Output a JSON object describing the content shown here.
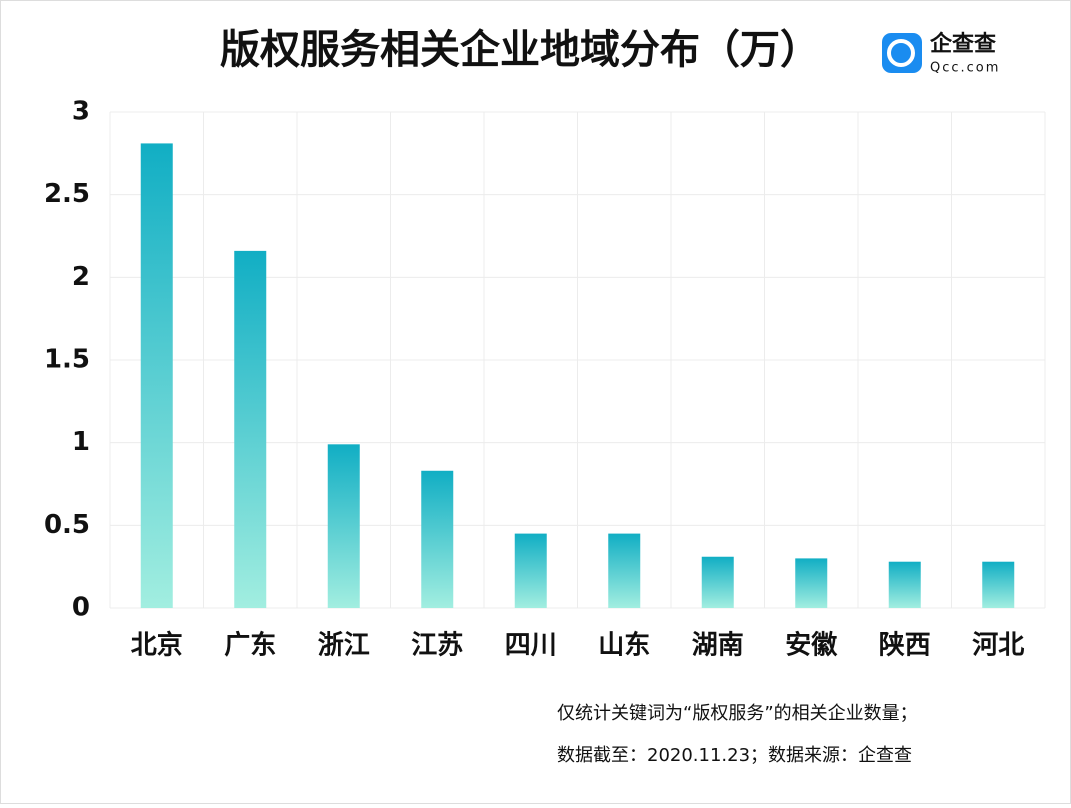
{
  "chart_data": {
    "type": "bar",
    "title": "版权服务相关企业地域分布（万）",
    "logo": {
      "name": "企查查",
      "site": "Qcc.com"
    },
    "categories": [
      "北京",
      "广东",
      "浙江",
      "江苏",
      "四川",
      "山东",
      "湖南",
      "安徽",
      "陕西",
      "河北"
    ],
    "values": [
      2.81,
      2.16,
      0.99,
      0.83,
      0.45,
      0.45,
      0.31,
      0.3,
      0.28,
      0.28
    ],
    "gradient": [
      "#11aec4",
      "#a2eee0"
    ],
    "ylim": [
      0,
      3
    ],
    "yticks": [
      0,
      0.5,
      1,
      1.5,
      2,
      2.5,
      3
    ],
    "grid": true,
    "notes": [
      "仅统计关键词为“版权服务”的相关企业数量；",
      "数据截至：2020.11.23；数据来源：企查查"
    ]
  }
}
